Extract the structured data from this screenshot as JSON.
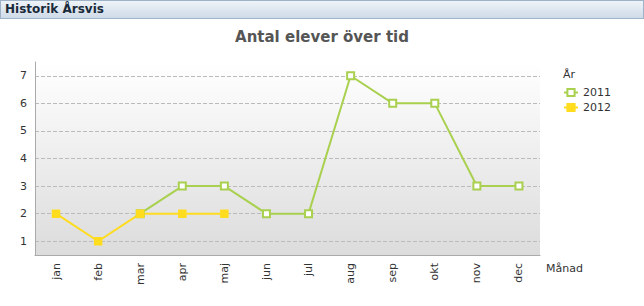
{
  "window": {
    "title": "Historik Årsvis"
  },
  "chart_data": {
    "type": "line",
    "title": "Antal elever över tid",
    "x_label": "Månad",
    "legend_title": "År",
    "categories": [
      "jan",
      "feb",
      "mar",
      "apr",
      "maj",
      "jun",
      "jul",
      "aug",
      "sep",
      "okt",
      "nov",
      "dec"
    ],
    "series": [
      {
        "name": "2011",
        "color": "#a9d04f",
        "marker": "square-open",
        "values": [
          null,
          null,
          2,
          3,
          3,
          2,
          2,
          7,
          6,
          6,
          3,
          3
        ]
      },
      {
        "name": "2012",
        "color": "#ffdc1e",
        "marker": "square",
        "values": [
          2,
          1,
          2,
          2,
          2,
          null,
          null,
          null,
          null,
          null,
          null,
          null
        ]
      }
    ],
    "ylim": [
      0.5,
      7.5
    ],
    "yticks": [
      1,
      2,
      3,
      4,
      5,
      6,
      7
    ],
    "grid": true,
    "legend": "right"
  }
}
